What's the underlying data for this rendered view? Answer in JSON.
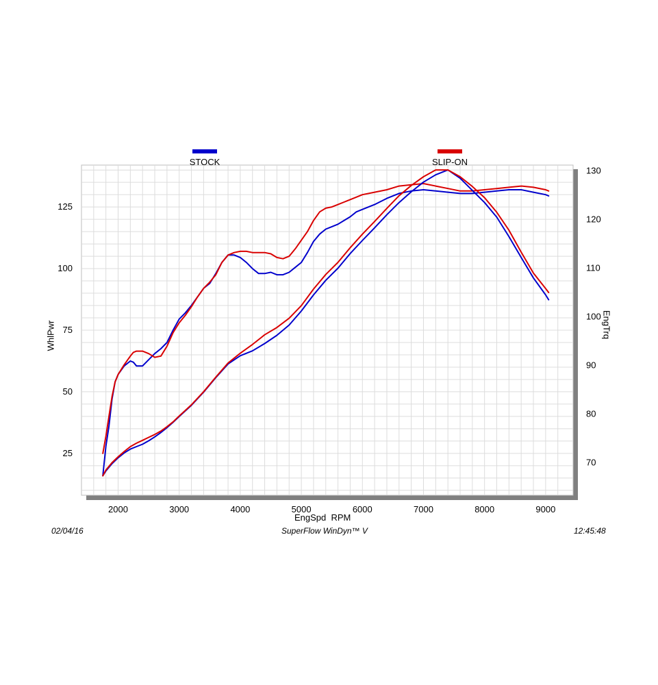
{
  "colors": {
    "stock": "#0000cc",
    "slipon": "#d90000",
    "grid": "#dcdcdc",
    "frame": "#7f7f7f"
  },
  "footer": {
    "date": "02/04/16",
    "software": "SuperFlow WinDyn™ V",
    "time": "12:45:48"
  },
  "chart_data": {
    "type": "line",
    "xlabel": "EngSpd  RPM",
    "ylabel": "WhlPwr",
    "y2label": "EngTrq",
    "xlim": [
      1400,
      9450
    ],
    "ylim": [
      8,
      142
    ],
    "y2lim": [
      63.3,
      131.2
    ],
    "xticks": [
      2000,
      3000,
      4000,
      5000,
      6000,
      7000,
      8000,
      9000
    ],
    "yticks": [
      25,
      50,
      75,
      100,
      125
    ],
    "y2ticks": [
      70,
      80,
      90,
      100,
      110,
      120,
      130
    ],
    "grid": true,
    "legend_position": "top",
    "series": [
      {
        "name": "STOCK",
        "measure": "power",
        "axis": "left",
        "color": "#0000cc",
        "x": [
          1750,
          1800,
          1850,
          1900,
          1950,
          2000,
          2100,
          2200,
          2250,
          2300,
          2400,
          2500,
          2600,
          2700,
          2800,
          2900,
          3000,
          3100,
          3200,
          3300,
          3400,
          3500,
          3600,
          3700,
          3800,
          3900,
          4000,
          4100,
          4200,
          4300,
          4400,
          4500,
          4600,
          4700,
          4800,
          4900,
          5000,
          5100,
          5200,
          5300,
          5400,
          5500,
          5600,
          5700,
          5800,
          5900,
          6000,
          6200,
          6400,
          6600,
          6800,
          7000,
          7200,
          7400,
          7600,
          7800,
          8000,
          8200,
          8400,
          8600,
          8800,
          9000,
          9050
        ],
        "y": [
          16,
          28,
          36,
          47,
          54,
          57,
          60.5,
          62.5,
          62,
          60.5,
          60.5,
          63,
          65.5,
          67.5,
          70,
          75,
          79.5,
          82,
          85,
          88.5,
          92,
          94,
          98,
          102.5,
          105.5,
          105.5,
          104.5,
          102.5,
          100,
          98,
          98,
          98.5,
          97.5,
          97.5,
          98.5,
          100.5,
          102.5,
          106.5,
          111,
          114,
          116,
          117,
          118,
          119.5,
          121,
          123,
          124,
          126,
          128.5,
          130.5,
          131.5,
          132,
          131.5,
          131,
          130.5,
          130.5,
          131,
          131.5,
          132,
          132,
          131,
          130,
          129.5
        ]
      },
      {
        "name": "SLIP-ON",
        "measure": "power",
        "axis": "left",
        "color": "#d90000",
        "x": [
          1750,
          1800,
          1850,
          1900,
          1950,
          2000,
          2100,
          2200,
          2250,
          2300,
          2400,
          2500,
          2600,
          2700,
          2800,
          2900,
          3000,
          3100,
          3200,
          3300,
          3400,
          3500,
          3600,
          3700,
          3800,
          3900,
          4000,
          4100,
          4200,
          4300,
          4400,
          4500,
          4600,
          4700,
          4800,
          4900,
          5000,
          5100,
          5200,
          5300,
          5400,
          5500,
          5600,
          5700,
          5800,
          5900,
          6000,
          6200,
          6400,
          6600,
          6800,
          7000,
          7200,
          7400,
          7600,
          7800,
          8000,
          8200,
          8400,
          8600,
          8800,
          9000,
          9050
        ],
        "y": [
          25,
          32,
          40,
          48,
          54,
          57,
          61,
          64.5,
          66,
          66.5,
          66.5,
          65.5,
          64,
          64.5,
          68.5,
          74,
          78,
          81,
          84.5,
          88.5,
          92,
          94.5,
          97.5,
          102.5,
          105.5,
          106.5,
          107,
          107,
          106.5,
          106.5,
          106.5,
          106,
          104.5,
          104,
          105,
          108,
          111.5,
          115,
          119.5,
          123,
          124.5,
          125,
          126,
          127,
          128,
          129,
          130,
          131,
          132,
          133.5,
          134,
          134.5,
          133.5,
          132.5,
          131.5,
          131.5,
          132,
          132.5,
          133,
          133.5,
          133,
          132,
          131.5
        ]
      },
      {
        "name": "STOCK",
        "measure": "torque",
        "axis": "right",
        "color": "#0000cc",
        "x": [
          1750,
          1800,
          1900,
          2000,
          2100,
          2200,
          2300,
          2400,
          2500,
          2600,
          2700,
          2800,
          2900,
          3000,
          3200,
          3400,
          3600,
          3800,
          4000,
          4200,
          4400,
          4600,
          4800,
          5000,
          5200,
          5400,
          5600,
          5800,
          6000,
          6200,
          6400,
          6600,
          6800,
          7000,
          7200,
          7400,
          7600,
          7800,
          8000,
          8200,
          8400,
          8600,
          8800,
          9000,
          9050
        ],
        "y": [
          67.3,
          68.3,
          69.8,
          71,
          72,
          72.8,
          73.3,
          73.8,
          74.5,
          75.3,
          76.2,
          77.2,
          78.3,
          79.5,
          81.8,
          84.5,
          87.5,
          90.3,
          92,
          93,
          94.5,
          96.2,
          98.3,
          101.2,
          104.5,
          107.5,
          110,
          113,
          115.7,
          118.3,
          121,
          123.5,
          125.7,
          127.7,
          129.2,
          130.2,
          128.5,
          126,
          123.5,
          120.5,
          116.5,
          112.2,
          108,
          104.5,
          103.5
        ]
      },
      {
        "name": "SLIP-ON",
        "measure": "torque",
        "axis": "right",
        "color": "#d90000",
        "x": [
          1750,
          1800,
          1900,
          2000,
          2100,
          2200,
          2300,
          2400,
          2500,
          2600,
          2700,
          2800,
          2900,
          3000,
          3200,
          3400,
          3600,
          3800,
          4000,
          4200,
          4400,
          4600,
          4800,
          5000,
          5200,
          5400,
          5600,
          5800,
          6000,
          6200,
          6400,
          6600,
          6800,
          7000,
          7200,
          7400,
          7600,
          7800,
          8000,
          8200,
          8400,
          8600,
          8800,
          9000,
          9050
        ],
        "y": [
          67.3,
          68.5,
          70,
          71.2,
          72.3,
          73.3,
          74,
          74.6,
          75.2,
          75.8,
          76.5,
          77.4,
          78.4,
          79.6,
          81.9,
          84.6,
          87.6,
          90.5,
          92.5,
          94.3,
          96.3,
          97.8,
          99.7,
          102.3,
          105.7,
          108.7,
          111.2,
          114.2,
          117,
          119.6,
          122.3,
          124.9,
          127,
          128.8,
          130.2,
          130.2,
          128.8,
          126.8,
          124.5,
          121.5,
          117.8,
          113.3,
          109,
          105.8,
          105
        ]
      }
    ]
  }
}
